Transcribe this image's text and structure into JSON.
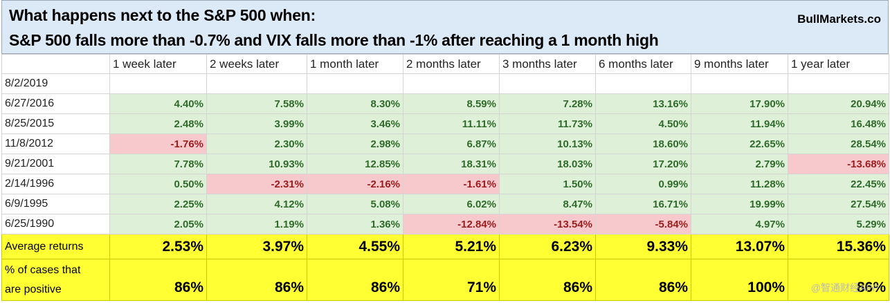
{
  "header": {
    "line1": "What happens next to the S&P 500 when:",
    "line2": "S&P 500 falls more than -0.7% and VIX falls more than -1% after reaching a 1 month high",
    "brand": "BullMarkets.co"
  },
  "columns": [
    "1 week later",
    "2 weeks later",
    "1 month later",
    "2 months later",
    "3 months later",
    "6 months later",
    "9 months later",
    "1 year later"
  ],
  "rows": [
    {
      "date": "8/2/2019",
      "values": [
        "",
        "",
        "",
        "",
        "",
        "",
        "",
        ""
      ]
    },
    {
      "date": "6/27/2016",
      "values": [
        "4.40%",
        "7.58%",
        "8.30%",
        "8.59%",
        "7.28%",
        "13.16%",
        "17.90%",
        "20.94%"
      ]
    },
    {
      "date": "8/25/2015",
      "values": [
        "2.48%",
        "3.99%",
        "3.46%",
        "11.11%",
        "11.73%",
        "4.50%",
        "11.94%",
        "16.48%"
      ]
    },
    {
      "date": "11/8/2012",
      "values": [
        "-1.76%",
        "2.30%",
        "2.98%",
        "6.87%",
        "10.13%",
        "18.60%",
        "22.65%",
        "28.54%"
      ]
    },
    {
      "date": "9/21/2001",
      "values": [
        "7.78%",
        "10.93%",
        "12.85%",
        "18.31%",
        "18.03%",
        "17.20%",
        "2.79%",
        "-13.68%"
      ]
    },
    {
      "date": "2/14/1996",
      "values": [
        "0.50%",
        "-2.31%",
        "-2.16%",
        "-1.61%",
        "1.50%",
        "0.99%",
        "11.28%",
        "22.45%"
      ]
    },
    {
      "date": "6/9/1995",
      "values": [
        "2.25%",
        "4.12%",
        "5.08%",
        "6.02%",
        "8.47%",
        "16.71%",
        "19.99%",
        "27.54%"
      ]
    },
    {
      "date": "6/25/1990",
      "values": [
        "2.05%",
        "1.19%",
        "1.36%",
        "-12.84%",
        "-13.54%",
        "-5.84%",
        "4.97%",
        "5.29%"
      ]
    }
  ],
  "average": {
    "label": "Average returns",
    "values": [
      "2.53%",
      "3.97%",
      "4.55%",
      "5.21%",
      "6.23%",
      "9.33%",
      "13.07%",
      "15.36%"
    ]
  },
  "positive": {
    "label_line1": "% of cases that",
    "label_line2": "are positive",
    "values": [
      "86%",
      "86%",
      "86%",
      "71%",
      "86%",
      "86%",
      "100%",
      "86%"
    ]
  },
  "watermark": "@智通财经APP",
  "colors": {
    "header_bg": "#dce9f6",
    "positive_bg": "#dff0d8",
    "negative_bg": "#f7c9cd",
    "summary_bg": "#ffff33"
  }
}
